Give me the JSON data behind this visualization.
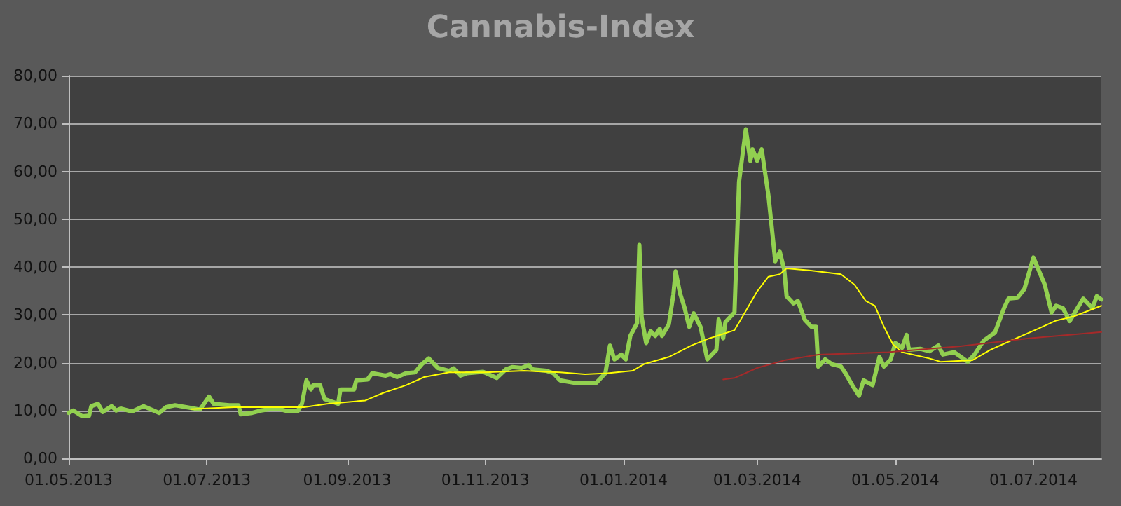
{
  "chart_data": {
    "type": "line",
    "title": "Cannabis-Index",
    "marker": "none",
    "grid": "y",
    "xlim": [
      "2013-05-01",
      "2014-07-31"
    ],
    "xticks": [
      {
        "value": "2013-05-01",
        "label": "01.05.2013"
      },
      {
        "value": "2013-07-01",
        "label": "01.07.2013"
      },
      {
        "value": "2013-09-01",
        "label": "01.09.2013"
      },
      {
        "value": "2013-11-01",
        "label": "01.11.2013"
      },
      {
        "value": "2014-01-01",
        "label": "01.01.2014"
      },
      {
        "value": "2014-03-01",
        "label": "01.03.2014"
      },
      {
        "value": "2014-05-01",
        "label": "01.05.2014"
      },
      {
        "value": "2014-07-01",
        "label": "01.07.2014"
      }
    ],
    "ylim": [
      0,
      80
    ],
    "yticks": [
      {
        "value": 0,
        "label": "0,00"
      },
      {
        "value": 10,
        "label": "10,00"
      },
      {
        "value": 20,
        "label": "20,00"
      },
      {
        "value": 30,
        "label": "30,00"
      },
      {
        "value": 40,
        "label": "40,00"
      },
      {
        "value": 50,
        "label": "50,00"
      },
      {
        "value": 60,
        "label": "60,00"
      },
      {
        "value": 70,
        "label": "70,00"
      },
      {
        "value": 80,
        "label": "80,00"
      }
    ],
    "series": [
      {
        "color": "#92d050",
        "x": [
          "2013-05-01",
          "2013-05-03",
          "2013-05-07",
          "2013-05-10",
          "2013-05-11",
          "2013-05-14",
          "2013-05-16",
          "2013-05-20",
          "2013-05-22",
          "2013-05-24",
          "2013-05-29",
          "2013-06-03",
          "2013-06-10",
          "2013-06-13",
          "2013-06-17",
          "2013-06-22",
          "2013-06-28",
          "2013-07-02",
          "2013-07-04",
          "2013-07-11",
          "2013-07-15",
          "2013-07-16",
          "2013-07-21",
          "2013-07-25",
          "2013-07-29",
          "2013-08-02",
          "2013-08-06",
          "2013-08-10",
          "2013-08-12",
          "2013-08-14",
          "2013-08-16",
          "2013-08-17",
          "2013-08-20",
          "2013-08-22",
          "2013-08-25",
          "2013-08-28",
          "2013-08-29",
          "2013-09-04",
          "2013-09-05",
          "2013-09-10",
          "2013-09-12",
          "2013-09-18",
          "2013-09-20",
          "2013-09-23",
          "2013-09-27",
          "2013-10-01",
          "2013-10-04",
          "2013-10-07",
          "2013-10-11",
          "2013-10-16",
          "2013-10-18",
          "2013-10-21",
          "2013-10-24",
          "2013-10-31",
          "2013-11-06",
          "2013-11-10",
          "2013-11-13",
          "2013-11-17",
          "2013-11-20",
          "2013-11-22",
          "2013-11-28",
          "2013-12-01",
          "2013-12-04",
          "2013-12-10",
          "2013-12-20",
          "2013-12-24",
          "2013-12-26",
          "2013-12-28",
          "2013-12-31",
          "2014-01-02",
          "2014-01-04",
          "2014-01-07",
          "2014-01-08",
          "2014-01-09",
          "2014-01-11",
          "2014-01-13",
          "2014-01-15",
          "2014-01-17",
          "2014-01-18",
          "2014-01-21",
          "2014-01-23",
          "2014-01-24",
          "2014-01-26",
          "2014-01-28",
          "2014-01-30",
          "2014-02-01",
          "2014-02-04",
          "2014-02-07",
          "2014-02-11",
          "2014-02-12",
          "2014-02-14",
          "2014-02-15",
          "2014-02-19",
          "2014-02-21",
          "2014-02-24",
          "2014-02-26",
          "2014-02-27",
          "2014-03-01",
          "2014-03-03",
          "2014-03-06",
          "2014-03-09",
          "2014-03-11",
          "2014-03-13",
          "2014-03-14",
          "2014-03-17",
          "2014-03-19",
          "2014-03-22",
          "2014-03-25",
          "2014-03-27",
          "2014-03-28",
          "2014-03-31",
          "2014-04-03",
          "2014-04-07",
          "2014-04-09",
          "2014-04-12",
          "2014-04-15",
          "2014-04-17",
          "2014-04-21",
          "2014-04-24",
          "2014-04-26",
          "2014-04-29",
          "2014-05-01",
          "2014-05-04",
          "2014-05-06",
          "2014-05-07",
          "2014-05-12",
          "2014-05-16",
          "2014-05-20",
          "2014-05-22",
          "2014-05-27",
          "2014-06-02",
          "2014-06-05",
          "2014-06-09",
          "2014-06-14",
          "2014-06-18",
          "2014-06-20",
          "2014-06-24",
          "2014-06-27",
          "2014-07-01",
          "2014-07-06",
          "2014-07-09",
          "2014-07-11",
          "2014-07-14",
          "2014-07-17",
          "2014-07-23",
          "2014-07-25",
          "2014-07-27",
          "2014-07-29",
          "2014-07-31"
        ],
        "values": [
          9.5,
          10.0,
          8.8,
          8.9,
          10.9,
          11.4,
          9.7,
          10.9,
          10.0,
          10.4,
          9.8,
          10.9,
          9.5,
          10.7,
          11.1,
          10.7,
          10.2,
          12.9,
          11.4,
          11.1,
          11.1,
          9.2,
          9.5,
          10.0,
          10.3,
          10.3,
          9.8,
          9.8,
          11.4,
          16.3,
          14.4,
          15.3,
          15.3,
          12.4,
          11.9,
          11.4,
          14.4,
          14.4,
          16.3,
          16.5,
          17.8,
          17.3,
          17.6,
          17.0,
          17.8,
          18.0,
          19.7,
          20.9,
          18.9,
          18.3,
          18.8,
          17.3,
          17.8,
          18.1,
          16.8,
          18.6,
          19.1,
          18.9,
          19.5,
          18.6,
          18.3,
          17.8,
          16.3,
          15.8,
          15.8,
          17.8,
          23.6,
          20.7,
          21.7,
          20.7,
          25.6,
          28.3,
          44.6,
          29.5,
          24.1,
          26.6,
          25.6,
          27.1,
          25.6,
          28.0,
          34.2,
          39.1,
          34.4,
          31.4,
          27.5,
          30.3,
          27.5,
          20.7,
          22.7,
          29.0,
          25.1,
          28.5,
          30.5,
          57.8,
          68.8,
          62.2,
          64.6,
          62.2,
          64.6,
          54.9,
          41.2,
          43.2,
          39.3,
          33.9,
          32.4,
          32.9,
          29.0,
          27.5,
          27.5,
          19.2,
          20.7,
          19.7,
          19.2,
          17.8,
          15.3,
          13.1,
          16.3,
          15.3,
          21.2,
          19.2,
          20.7,
          24.1,
          23.1,
          25.8,
          22.7,
          22.9,
          22.4,
          23.6,
          21.7,
          22.2,
          20.2,
          21.7,
          24.6,
          26.3,
          31.4,
          33.4,
          33.6,
          35.4,
          42.0,
          36.3,
          30.5,
          31.9,
          31.4,
          28.7,
          33.4,
          32.4,
          31.4,
          33.9,
          33.2
        ]
      },
      {
        "color": "#ffff00",
        "x": [
          "2013-06-24",
          "2013-07-13",
          "2013-08-13",
          "2013-08-23",
          "2013-09-09",
          "2013-09-17",
          "2013-09-27",
          "2013-10-05",
          "2013-10-16",
          "2013-11-01",
          "2013-11-18",
          "2013-12-04",
          "2013-12-15",
          "2013-12-25",
          "2014-01-05",
          "2014-01-10",
          "2014-01-21",
          "2014-01-31",
          "2014-02-08",
          "2014-02-19",
          "2014-02-23",
          "2014-03-01",
          "2014-03-06",
          "2014-03-11",
          "2014-03-14",
          "2014-03-24",
          "2014-04-07",
          "2014-04-13",
          "2014-04-18",
          "2014-04-22",
          "2014-04-26",
          "2014-04-30",
          "2014-05-04",
          "2014-05-16",
          "2014-05-21",
          "2014-06-04",
          "2014-06-12",
          "2014-06-20",
          "2014-07-03",
          "2014-07-11",
          "2014-07-19",
          "2014-07-31"
        ],
        "values": [
          10.3,
          10.7,
          10.7,
          11.4,
          12.1,
          13.7,
          15.3,
          17.0,
          18.0,
          18.0,
          18.3,
          18.0,
          17.6,
          17.8,
          18.3,
          19.7,
          21.2,
          23.6,
          25.1,
          26.8,
          30.0,
          34.9,
          38.0,
          38.5,
          39.7,
          39.3,
          38.5,
          36.3,
          32.9,
          31.9,
          27.5,
          23.8,
          22.2,
          20.9,
          20.2,
          20.5,
          22.7,
          24.4,
          27.1,
          28.8,
          29.7,
          31.9
        ]
      },
      {
        "color": "#a52a2a",
        "x": [
          "2014-02-14",
          "2014-02-19",
          "2014-03-01",
          "2014-03-13",
          "2014-03-28",
          "2014-04-28",
          "2014-05-29",
          "2014-06-29",
          "2014-07-31"
        ],
        "values": [
          16.5,
          16.8,
          18.9,
          20.5,
          21.7,
          22.2,
          23.4,
          25.1,
          26.4
        ]
      }
    ]
  }
}
